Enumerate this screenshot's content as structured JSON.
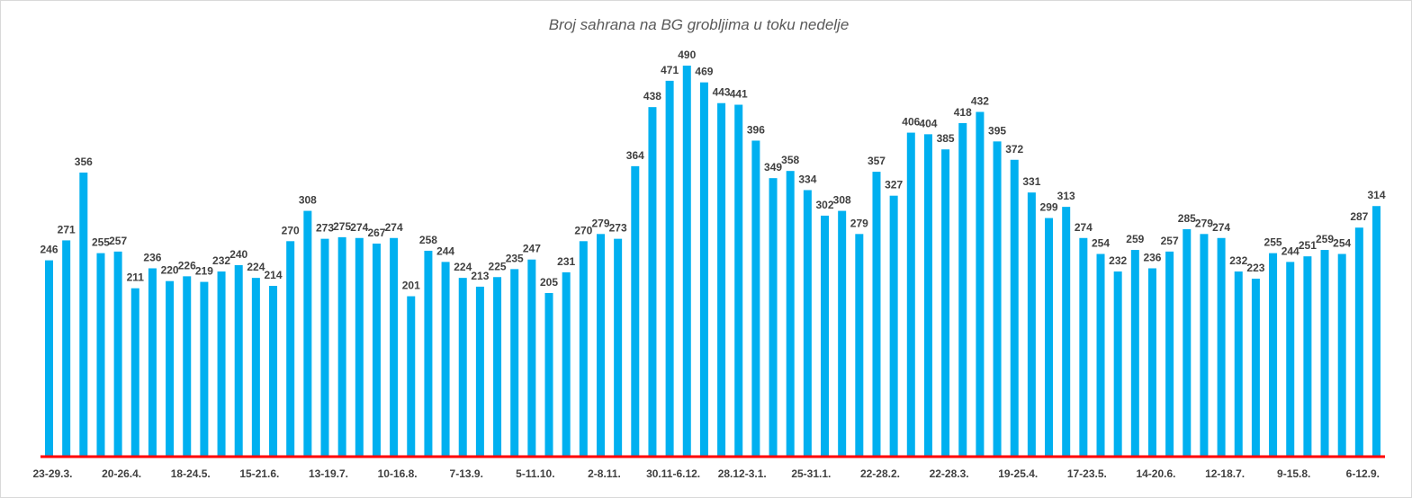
{
  "chart_data": {
    "type": "bar",
    "title": "Broj sahrana na BG grobljima u toku nedelje",
    "xlabel": "",
    "ylabel": "",
    "ylim": [
      0,
      490
    ],
    "grid": false,
    "bar_color": "#00B0F0",
    "axis_color": "#FF0000",
    "values": [
      246,
      271,
      356,
      255,
      257,
      211,
      236,
      220,
      226,
      219,
      232,
      240,
      224,
      214,
      270,
      308,
      273,
      275,
      274,
      267,
      274,
      201,
      258,
      244,
      224,
      213,
      225,
      235,
      247,
      205,
      231,
      270,
      279,
      273,
      364,
      438,
      471,
      490,
      469,
      443,
      441,
      396,
      349,
      358,
      334,
      302,
      308,
      279,
      357,
      327,
      406,
      404,
      385,
      418,
      432,
      395,
      372,
      331,
      299,
      313,
      274,
      254,
      232,
      259,
      236,
      257,
      285,
      279,
      274,
      232,
      223,
      255,
      244,
      251,
      259,
      254,
      287,
      314
    ],
    "tick_labels": [
      {
        "index": 0,
        "label": "23-29.3."
      },
      {
        "index": 4,
        "label": "20-26.4."
      },
      {
        "index": 8,
        "label": "18-24.5."
      },
      {
        "index": 12,
        "label": "15-21.6."
      },
      {
        "index": 16,
        "label": "13-19.7."
      },
      {
        "index": 20,
        "label": "10-16.8."
      },
      {
        "index": 24,
        "label": "7-13.9."
      },
      {
        "index": 28,
        "label": "5-11.10."
      },
      {
        "index": 32,
        "label": "2-8.11."
      },
      {
        "index": 36,
        "label": "30.11-6.12."
      },
      {
        "index": 40,
        "label": "28.12-3.1."
      },
      {
        "index": 44,
        "label": "25-31.1."
      },
      {
        "index": 48,
        "label": "22-28.2."
      },
      {
        "index": 52,
        "label": "22-28.3."
      },
      {
        "index": 56,
        "label": "19-25.4."
      },
      {
        "index": 60,
        "label": "17-23.5."
      },
      {
        "index": 64,
        "label": "14-20.6."
      },
      {
        "index": 68,
        "label": "12-18.7."
      },
      {
        "index": 72,
        "label": "9-15.8."
      },
      {
        "index": 76,
        "label": "6-12.9."
      }
    ]
  }
}
